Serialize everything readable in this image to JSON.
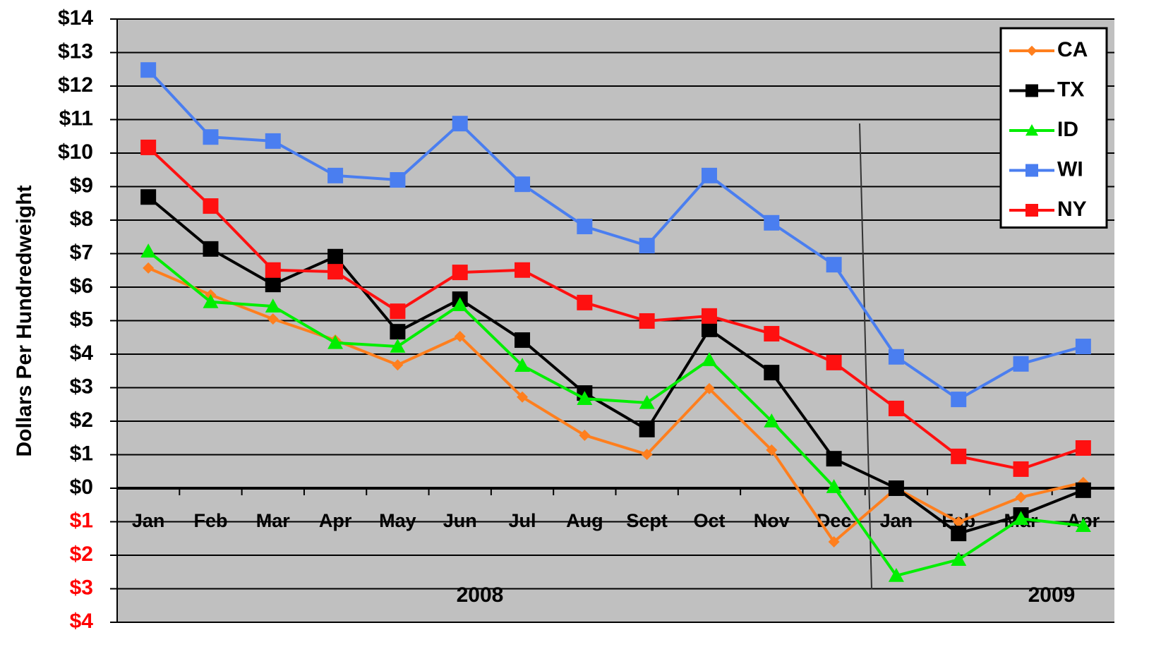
{
  "chart_data": {
    "type": "line",
    "y_label": "Dollars Per Hundredweight",
    "categories": [
      "Jan",
      "Feb",
      "Mar",
      "Apr",
      "May",
      "Jun",
      "Jul",
      "Aug",
      "Sept",
      "Oct",
      "Nov",
      "Dec",
      "Jan",
      "Feb",
      "Mar",
      "Apr"
    ],
    "year_labels": [
      "2008",
      "2009"
    ],
    "series": [
      {
        "name": "CA",
        "color": "#ff7f1e",
        "marker": "diamond",
        "values": [
          6.57,
          5.77,
          5.05,
          4.42,
          3.68,
          4.53,
          2.72,
          1.58,
          1.01,
          2.97,
          1.14,
          -1.6,
          0,
          -1.01,
          -0.27,
          0.17
        ]
      },
      {
        "name": "TX",
        "color": "#000000",
        "marker": "square",
        "values": [
          8.69,
          7.14,
          6.08,
          6.91,
          4.67,
          5.64,
          4.42,
          2.84,
          1.75,
          4.74,
          3.45,
          0.88,
          0,
          -1.35,
          -0.8,
          -0.06
        ]
      },
      {
        "name": "ID",
        "color": "#00ee00",
        "marker": "triangle",
        "values": [
          7.07,
          5.56,
          5.43,
          4.34,
          4.23,
          5.47,
          3.66,
          2.67,
          2.55,
          3.83,
          2.0,
          0.04,
          -2.61,
          -2.13,
          -0.91,
          -1.12
        ]
      },
      {
        "name": "WI",
        "color": "#4a7ef0",
        "marker": "square",
        "values": [
          12.48,
          10.48,
          10.36,
          9.33,
          9.2,
          10.88,
          9.07,
          7.81,
          7.24,
          9.33,
          7.92,
          6.67,
          3.92,
          2.65,
          3.71,
          4.23
        ]
      },
      {
        "name": "NY",
        "color": "#ff1010",
        "marker": "square",
        "values": [
          10.17,
          8.42,
          6.51,
          6.46,
          5.28,
          6.44,
          6.51,
          5.54,
          4.99,
          5.14,
          4.61,
          3.75,
          2.38,
          0.95,
          0.57,
          1.2
        ]
      }
    ],
    "ylim": [
      -4,
      14
    ],
    "yticks": [
      {
        "value": -4,
        "label": "$4"
      },
      {
        "value": -3,
        "label": "$3"
      },
      {
        "value": -2,
        "label": "$2"
      },
      {
        "value": -1,
        "label": "$1"
      },
      {
        "value": 0,
        "label": "$0"
      },
      {
        "value": 1,
        "label": "$1"
      },
      {
        "value": 2,
        "label": "$2"
      },
      {
        "value": 3,
        "label": "$3"
      },
      {
        "value": 4,
        "label": "$4"
      },
      {
        "value": 5,
        "label": "$5"
      },
      {
        "value": 6,
        "label": "$6"
      },
      {
        "value": 7,
        "label": "$7"
      },
      {
        "value": 8,
        "label": "$8"
      },
      {
        "value": 9,
        "label": "$9"
      },
      {
        "value": 10,
        "label": "$10"
      },
      {
        "value": 11,
        "label": "$11"
      },
      {
        "value": 12,
        "label": "$12"
      },
      {
        "value": 13,
        "label": "$13"
      },
      {
        "value": 14,
        "label": "$14"
      }
    ],
    "negative_tick_color": "#ff0000",
    "grid": true,
    "legend": "top-right",
    "background": "#c0c0c0"
  }
}
